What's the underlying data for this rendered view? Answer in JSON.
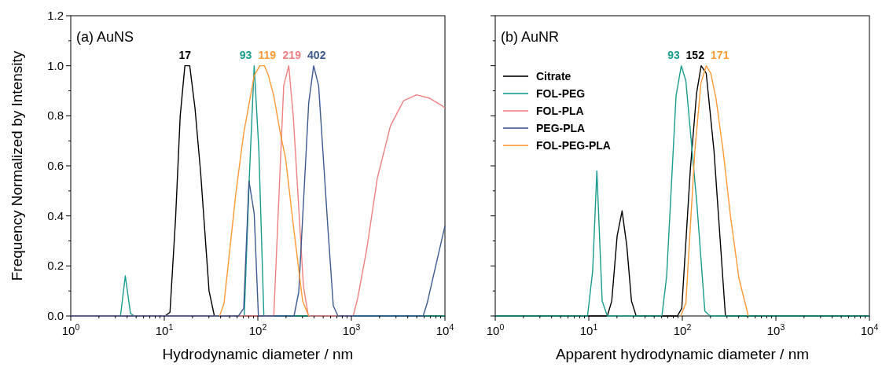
{
  "chart_data": [
    {
      "type": "line",
      "title": "(a) AuNS",
      "xlabel": "Hydrodynamic diameter / nm",
      "ylabel": "Frequency Normalized by Intensity",
      "log": "x",
      "legend": false,
      "line_style": "solid",
      "marker": "none",
      "xlim": [
        1,
        10000
      ],
      "xticks": [
        {
          "value": 1,
          "label": "10$^{0}$"
        },
        {
          "value": 10,
          "label": "10$^{1}$"
        },
        {
          "value": 100,
          "label": "10$^{2}$"
        },
        {
          "value": 1000,
          "label": "10$^{3}$"
        },
        {
          "value": 10000,
          "label": "10$^{4}$"
        }
      ],
      "ylim": [
        0,
        1.2
      ],
      "yticks": [
        {
          "value": 0,
          "label": "0.0"
        },
        {
          "value": 0.2,
          "label": "0.2"
        },
        {
          "value": 0.4,
          "label": "0.4"
        },
        {
          "value": 0.6,
          "label": "0.6"
        },
        {
          "value": 0.8,
          "label": "0.8"
        },
        {
          "value": 1,
          "label": "1.0"
        },
        {
          "value": 1.2,
          "label": "1.2"
        }
      ],
      "series": [
        {
          "color": "#000000",
          "x": [
            1,
            10.2,
            11.5,
            13.2,
            14.8,
            16.6,
            18.7,
            21.3,
            24.5,
            30.1,
            34.3,
            10000
          ],
          "values": [
            0,
            0,
            0.015,
            0.39,
            0.8,
            1,
            1,
            0.83,
            0.57,
            0.1,
            0,
            0
          ]
        },
        {
          "color": "#179c8e",
          "x": [
            1,
            3.4,
            3.83,
            4.35,
            4.8,
            71.6,
            81,
            91.4,
            102.6,
            116,
            10000
          ],
          "values": [
            0,
            0,
            0.16,
            0.01,
            0,
            0,
            0.55,
            1,
            0.66,
            0,
            0
          ]
        },
        {
          "color": "#f08080",
          "x": [
            1,
            148,
            189,
            214,
            240,
            307,
            347,
            1045,
            1167,
            1463,
            1893,
            2616,
            3610,
            4980,
            6880,
            9380,
            10000
          ],
          "values": [
            0,
            0,
            0.92,
            1,
            0.79,
            0.12,
            0,
            0,
            0.07,
            0.27,
            0.55,
            0.76,
            0.86,
            0.884,
            0.87,
            0.84,
            0.83
          ]
        },
        {
          "color": "#3b5a8f",
          "x": [
            1,
            62,
            70.6,
            80.4,
            91.4,
            101.4,
            243.6,
            273.5,
            349.6,
            395,
            446.6,
            563.6,
            641,
            719,
            5850,
            6445,
            10000
          ],
          "values": [
            0,
            0,
            0.03,
            0.54,
            0.41,
            0,
            0,
            0.095,
            0.85,
            1,
            0.92,
            0.34,
            0.04,
            0,
            0,
            0.05,
            0.36
          ]
        },
        {
          "color": "#ff9933",
          "x": [
            39,
            43.5,
            58.2,
            70.6,
            91.4,
            105,
            118,
            130,
            148,
            174,
            198,
            240,
            301,
            350
          ],
          "values": [
            0,
            0.05,
            0.49,
            0.73,
            0.96,
            1,
            1,
            0.96,
            0.88,
            0.73,
            0.63,
            0.36,
            0.06,
            0
          ]
        }
      ],
      "annotations": [
        {
          "text": "17",
          "x": 16.6,
          "y": 1
        },
        {
          "text": "93",
          "x": 91.4,
          "y": 1
        },
        {
          "text": "119",
          "x": 118,
          "y": 1
        },
        {
          "text": "219",
          "x": 214,
          "y": 1
        },
        {
          "text": "402",
          "x": 395,
          "y": 1
        }
      ]
    },
    {
      "type": "line",
      "title": "(b) AuNR",
      "xlabel": "Apparent hydrodynamic diameter / nm",
      "log": "x",
      "legend": "top left",
      "line_style": "solid",
      "marker": "none",
      "tick_labels": "x",
      "xlim": [
        1,
        10000
      ],
      "xticks": [
        {
          "value": 1,
          "label": "10$^{0}$"
        },
        {
          "value": 10,
          "label": "10$^{1}$"
        },
        {
          "value": 100,
          "label": "10$^{2}$"
        },
        {
          "value": 1000,
          "label": "10$^{3}$"
        },
        {
          "value": 10000,
          "label": "10$^{4}$"
        }
      ],
      "ylim": [
        0,
        1.2
      ],
      "yticks": [
        0,
        0.2,
        0.4,
        0.6,
        0.8,
        1,
        1.2
      ],
      "series": [
        {
          "name": "Citrate",
          "color": "#000000",
          "x": [
            1,
            15.8,
            17.6,
            20.1,
            22.7,
            25.5,
            28.6,
            32.1,
            88.5,
            98.6,
            122,
            142,
            159,
            180,
            218,
            289,
            10000
          ],
          "values": [
            0,
            0,
            0.06,
            0.32,
            0.42,
            0.28,
            0.06,
            0,
            0,
            0.03,
            0.59,
            0.89,
            1,
            0.97,
            0.66,
            0,
            0
          ]
        },
        {
          "name": "FOL-PEG",
          "color": "#179c8e",
          "x": [
            1,
            9.7,
            11,
            12.2,
            13.9,
            15.8,
            60.5,
            68,
            85.7,
            97.5,
            109,
            143,
            174,
            198,
            10000
          ],
          "values": [
            0,
            0,
            0.18,
            0.58,
            0.06,
            0,
            0,
            0.16,
            0.88,
            1,
            0.94,
            0.45,
            0.02,
            0,
            0
          ]
        },
        {
          "name": "FOL-PLA",
          "color": "#f08080"
        },
        {
          "name": "PEG-PLA",
          "color": "#3b5a8f"
        },
        {
          "name": "FOL-PEG-PLA",
          "color": "#ff9933",
          "x": [
            96,
            109,
            136,
            158,
            180,
            201,
            229,
            273,
            327,
            403,
            508
          ],
          "values": [
            0,
            0.05,
            0.66,
            0.93,
            1,
            0.97,
            0.87,
            0.66,
            0.4,
            0.15,
            0
          ]
        }
      ],
      "annotations": [
        {
          "text": "93",
          "x": 97.5,
          "y": 1
        },
        {
          "text": "152",
          "x": 159,
          "y": 1
        },
        {
          "text": "171",
          "x": 180,
          "y": 1
        }
      ]
    }
  ]
}
